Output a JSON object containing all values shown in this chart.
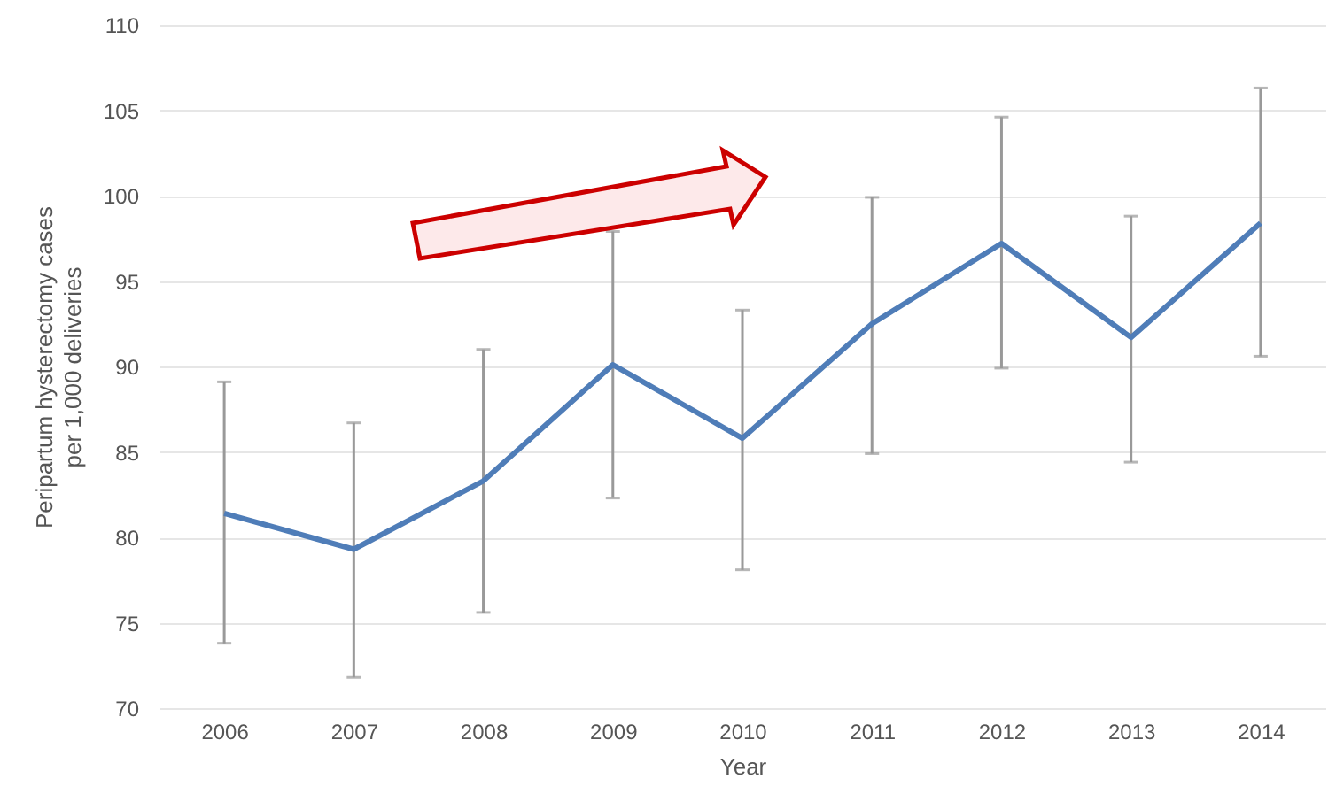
{
  "chart_data": {
    "type": "line",
    "xlabel": "Year",
    "ylabel": "Peripartum hysterectomy cases per 1,000 deliveries",
    "categories": [
      "2006",
      "2007",
      "2008",
      "2009",
      "2010",
      "2011",
      "2012",
      "2013",
      "2014"
    ],
    "values": [
      81.4,
      79.3,
      83.3,
      90.1,
      85.8,
      92.5,
      97.2,
      91.7,
      98.4
    ],
    "errors": [
      [
        73.8,
        89.1
      ],
      [
        71.8,
        86.7
      ],
      [
        75.6,
        91.0
      ],
      [
        82.3,
        97.9
      ],
      [
        78.1,
        93.3
      ],
      [
        84.9,
        99.9
      ],
      [
        89.9,
        104.6
      ],
      [
        84.4,
        98.8
      ],
      [
        90.6,
        106.3
      ]
    ],
    "color": "#4f7db8",
    "ylim": [
      70,
      110
    ],
    "yticks": [
      70,
      75,
      80,
      85,
      90,
      95,
      100,
      105,
      110
    ],
    "grid": "y"
  }
}
